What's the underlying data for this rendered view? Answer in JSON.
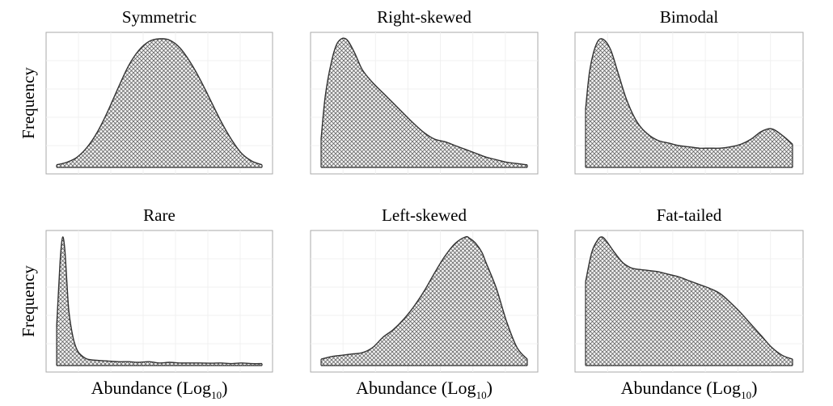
{
  "chart_data": [
    {
      "type": "area",
      "title": "Symmetric",
      "ylabel": "Frequency",
      "xlabel": "",
      "x": [
        0,
        0.05,
        0.1,
        0.15,
        0.2,
        0.25,
        0.3,
        0.35,
        0.4,
        0.45,
        0.5,
        0.55,
        0.6,
        0.65,
        0.7,
        0.75,
        0.8,
        0.85,
        0.9,
        0.95,
        1
      ],
      "y": [
        0.02,
        0.04,
        0.08,
        0.16,
        0.28,
        0.44,
        0.62,
        0.79,
        0.91,
        0.98,
        1.0,
        0.99,
        0.93,
        0.82,
        0.68,
        0.52,
        0.36,
        0.22,
        0.11,
        0.05,
        0.02
      ]
    },
    {
      "type": "area",
      "title": "Right-skewed",
      "ylabel": "",
      "xlabel": "",
      "x": [
        0,
        0.02,
        0.05,
        0.08,
        0.12,
        0.16,
        0.2,
        0.25,
        0.3,
        0.35,
        0.4,
        0.45,
        0.5,
        0.55,
        0.6,
        0.65,
        0.7,
        0.75,
        0.8,
        0.85,
        0.9,
        0.95,
        1
      ],
      "y": [
        0.22,
        0.55,
        0.82,
        0.97,
        1.0,
        0.9,
        0.76,
        0.66,
        0.58,
        0.5,
        0.42,
        0.34,
        0.27,
        0.22,
        0.2,
        0.17,
        0.14,
        0.11,
        0.08,
        0.06,
        0.04,
        0.03,
        0.02
      ]
    },
    {
      "type": "area",
      "title": "Bimodal",
      "ylabel": "",
      "xlabel": "",
      "x": [
        0,
        0.02,
        0.05,
        0.08,
        0.12,
        0.16,
        0.2,
        0.25,
        0.3,
        0.35,
        0.4,
        0.45,
        0.5,
        0.55,
        0.6,
        0.65,
        0.7,
        0.75,
        0.8,
        0.85,
        0.9,
        0.95,
        1
      ],
      "y": [
        0.45,
        0.75,
        0.95,
        1.0,
        0.92,
        0.72,
        0.52,
        0.35,
        0.26,
        0.21,
        0.19,
        0.17,
        0.16,
        0.15,
        0.15,
        0.15,
        0.16,
        0.18,
        0.22,
        0.28,
        0.3,
        0.25,
        0.18
      ]
    },
    {
      "type": "area",
      "title": "Rare",
      "ylabel": "Frequency",
      "xlabel": "Abundance (Log10)",
      "x": [
        0,
        0.01,
        0.02,
        0.03,
        0.04,
        0.05,
        0.06,
        0.08,
        0.1,
        0.12,
        0.15,
        0.2,
        0.25,
        0.3,
        0.35,
        0.4,
        0.45,
        0.5,
        0.55,
        0.6,
        0.65,
        0.7,
        0.75,
        0.8,
        0.85,
        0.9,
        0.95,
        1
      ],
      "y": [
        0.3,
        0.6,
        0.88,
        1.0,
        0.9,
        0.65,
        0.42,
        0.22,
        0.12,
        0.08,
        0.05,
        0.04,
        0.035,
        0.03,
        0.03,
        0.025,
        0.03,
        0.02,
        0.025,
        0.02,
        0.02,
        0.02,
        0.018,
        0.02,
        0.015,
        0.02,
        0.015,
        0.015
      ]
    },
    {
      "type": "area",
      "title": "Left-skewed",
      "ylabel": "",
      "xlabel": "Abundance (Log10)",
      "x": [
        0,
        0.05,
        0.1,
        0.15,
        0.2,
        0.25,
        0.3,
        0.35,
        0.4,
        0.45,
        0.5,
        0.55,
        0.6,
        0.65,
        0.7,
        0.72,
        0.75,
        0.78,
        0.8,
        0.85,
        0.9,
        0.95,
        1
      ],
      "y": [
        0.05,
        0.07,
        0.08,
        0.09,
        0.1,
        0.14,
        0.22,
        0.28,
        0.36,
        0.46,
        0.58,
        0.72,
        0.85,
        0.95,
        1.0,
        0.99,
        0.95,
        0.88,
        0.8,
        0.6,
        0.34,
        0.14,
        0.05
      ]
    },
    {
      "type": "area",
      "title": "Fat-tailed",
      "ylabel": "",
      "xlabel": "Abundance (Log10)",
      "x": [
        0,
        0.03,
        0.06,
        0.08,
        0.1,
        0.14,
        0.18,
        0.22,
        0.25,
        0.3,
        0.35,
        0.4,
        0.45,
        0.5,
        0.55,
        0.6,
        0.65,
        0.7,
        0.75,
        0.8,
        0.85,
        0.9,
        0.95,
        1
      ],
      "y": [
        0.65,
        0.88,
        0.98,
        1.0,
        0.97,
        0.88,
        0.8,
        0.76,
        0.75,
        0.74,
        0.73,
        0.71,
        0.69,
        0.66,
        0.63,
        0.6,
        0.56,
        0.49,
        0.41,
        0.32,
        0.23,
        0.14,
        0.08,
        0.05
      ]
    }
  ]
}
